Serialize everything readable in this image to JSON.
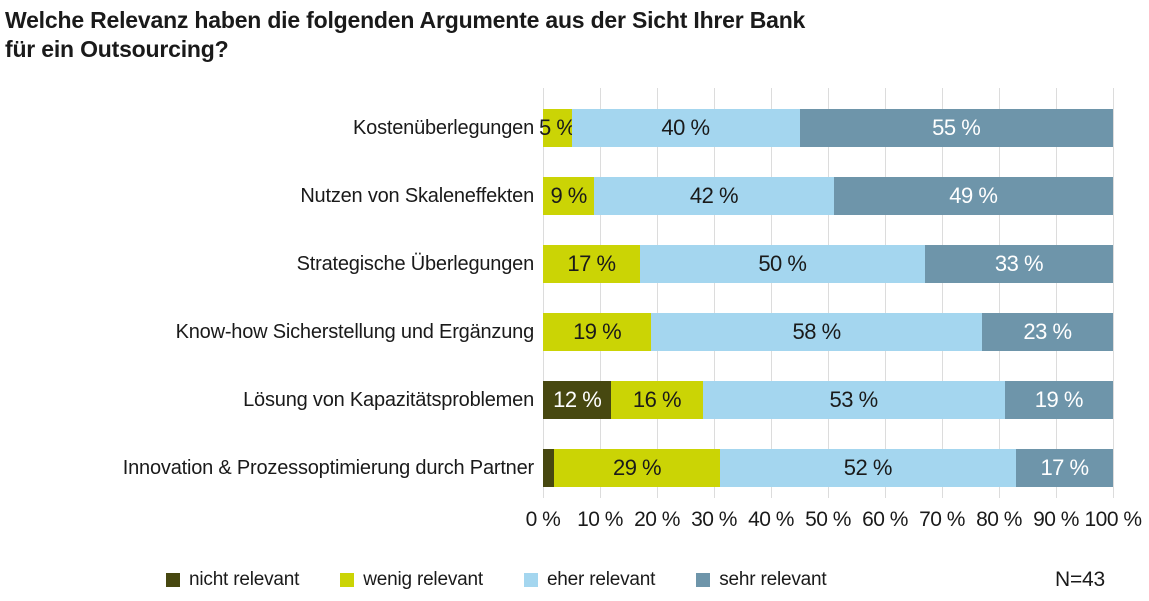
{
  "title": {
    "lines": [
      "Welche Relevanz haben die folgenden Argumente aus der Sicht Ihrer Bank",
      "für ein Outsourcing?"
    ]
  },
  "note": "N=43",
  "chart_data": {
    "type": "bar",
    "subtype": "horizontal-stacked",
    "title": "Welche Relevanz haben die folgenden Argumente aus der Sicht Ihrer Bank für ein Outsourcing?",
    "xlabel": "",
    "ylabel": "",
    "xlim": [
      0,
      100
    ],
    "x_tick_step": 10,
    "x_tick_labels": [
      "0 %",
      "10 %",
      "20 %",
      "30 %",
      "40 %",
      "50 %",
      "60 %",
      "70 %",
      "80 %",
      "90 %",
      "100 %"
    ],
    "grid": "vertical",
    "legend_position": "bottom",
    "categories": [
      "Kostenüberlegungen",
      "Nutzen von Skaleneffekten",
      "Strategische Überlegungen",
      "Know-how Sicherstellung und Ergänzung",
      "Lösung von Kapazitätsproblemen",
      "Innovation & Prozessoptimierung durch Partner"
    ],
    "series": [
      {
        "name": "nicht relevant",
        "color": "#474810",
        "label_color": "#ffffff",
        "values": [
          0,
          0,
          0,
          0,
          12,
          2
        ],
        "labels": [
          "",
          "",
          "",
          "",
          "12 %",
          ""
        ]
      },
      {
        "name": "wenig relevant",
        "color": "#cbd405",
        "label_color": "#1a1a1a",
        "values": [
          5,
          9,
          17,
          19,
          16,
          29
        ],
        "labels": [
          "5 %",
          "9 %",
          "17 %",
          "19 %",
          "16 %",
          "29 %"
        ]
      },
      {
        "name": "eher relevant",
        "color": "#a4d6ef",
        "label_color": "#1a1a1a",
        "values": [
          40,
          42,
          50,
          58,
          53,
          52
        ],
        "labels": [
          "40 %",
          "42 %",
          "50 %",
          "58 %",
          "53 %",
          "52 %"
        ]
      },
      {
        "name": "sehr relevant",
        "color": "#6e95aa",
        "label_color": "#ffffff",
        "values": [
          55,
          49,
          33,
          23,
          19,
          17
        ],
        "labels": [
          "55 %",
          "49 %",
          "33 %",
          "23 %",
          "19 %",
          "17 %"
        ]
      }
    ],
    "legend": [
      {
        "label": "nicht relevant",
        "color": "#474810"
      },
      {
        "label": "wenig relevant",
        "color": "#cbd405"
      },
      {
        "label": "eher relevant",
        "color": "#a4d6ef"
      },
      {
        "label": "sehr relevant",
        "color": "#6e95aa"
      }
    ]
  }
}
